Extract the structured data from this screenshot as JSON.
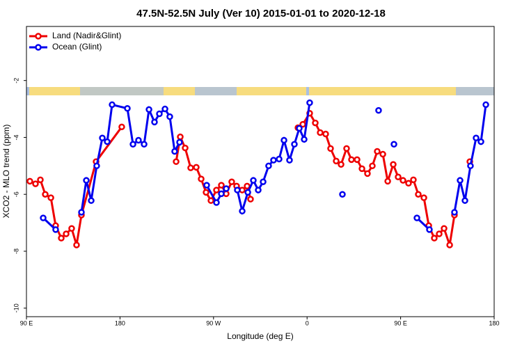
{
  "chart_data": {
    "type": "line",
    "title": "47.5N-52.5N July (Ver 10)   2015-01-01 to 2020-12-18",
    "x_label": "Longitude (deg E)",
    "y_label": "XCO2 - MLO trend (ppm)",
    "xlim": [
      90,
      540
    ],
    "ylim": [
      -10.3,
      -0.1
    ],
    "xticks": [
      {
        "value": 90,
        "label": "90 E"
      },
      180,
      {
        "value": 270,
        "label": "90 W"
      },
      {
        "value": 360,
        "label": "0"
      },
      {
        "value": 450,
        "label": "90 E"
      },
      {
        "value": 540,
        "label": "180"
      }
    ],
    "yticks": [
      -2,
      -4,
      -6,
      -8,
      -10
    ],
    "legend_position": "upper left",
    "series": [
      {
        "name": "Land (Nadir&Glint)",
        "color": "#ee0000",
        "x": [
          93.3,
          98.7,
          103.4,
          108.1,
          113.5,
          118.1,
          123.5,
          128.2,
          133.5,
          138.2,
          142.9,
          157.0,
          181.7,
          null,
          234.0,
          238.0,
          242.7,
          248.0,
          253.4,
          258.1,
          262.8,
          267.5,
          272.8,
          277.5,
          282.2,
          287.5,
          292.2,
          297.6,
          302.3,
          305.6,
          null,
          351.2,
          355.9,
          362.5,
          367.9,
          372.6,
          377.9,
          382.6,
          388.0,
          392.7,
          398.0,
          402.7,
          408.1,
          412.8,
          418.1,
          422.8,
          427.5,
          432.9,
          437.6,
          442.9,
          447.6,
          452.3,
          457.6,
          462.3,
          467.0,
          472.4,
          477.1,
          482.4,
          487.1,
          491.8,
          497.2,
          501.8,
          null,
          516.6
        ],
        "values": [
          -5.54,
          -5.63,
          -5.49,
          -6.0,
          -6.12,
          -7.1,
          -7.54,
          -7.39,
          -7.2,
          -7.78,
          -6.73,
          -4.85,
          -3.63,
          null,
          -4.85,
          -3.98,
          -4.37,
          -5.07,
          -5.05,
          -5.46,
          -5.93,
          -6.22,
          -5.85,
          -5.68,
          -5.98,
          -5.56,
          -5.71,
          -5.85,
          -5.71,
          -6.17,
          null,
          -3.66,
          -3.54,
          -3.15,
          -3.49,
          -3.83,
          -3.88,
          -4.39,
          -4.83,
          -4.95,
          -4.39,
          -4.78,
          -4.78,
          -5.1,
          -5.27,
          -5.0,
          -4.49,
          -4.59,
          -5.54,
          -4.95,
          -5.39,
          -5.51,
          -5.61,
          -5.49,
          -6.0,
          -6.12,
          -7.1,
          -7.54,
          -7.39,
          -7.2,
          -7.78,
          -6.73,
          null,
          -4.85
        ]
      },
      {
        "name": "Ocean (Glint)",
        "color": "#0000ee",
        "x": [
          106.1,
          118.1,
          null,
          142.9,
          147.6,
          152.3,
          157.6,
          163.0,
          167.7,
          172.4,
          187.1,
          192.5,
          197.8,
          203.2,
          207.9,
          213.2,
          217.9,
          223.3,
          227.9,
          232.6,
          237.3,
          null,
          263.4,
          272.8,
          277.5,
          282.2,
          null,
          292.9,
          297.6,
          303.0,
          308.3,
          313.0,
          317.7,
          323.0,
          327.7,
          333.1,
          337.8,
          343.1,
          347.8,
          352.5,
          357.2,
          362.5,
          null,
          394.0,
          null,
          428.8,
          null,
          443.6,
          null,
          465.7,
          477.7,
          null,
          501.8,
          507.2,
          511.9,
          517.2,
          522.6,
          527.3,
          532.0
        ],
        "values": [
          -6.83,
          -7.24,
          null,
          -6.63,
          -5.51,
          -6.22,
          -5.0,
          -4.02,
          -4.15,
          -2.85,
          -2.98,
          -4.24,
          -4.1,
          -4.24,
          -3.02,
          -3.46,
          -3.17,
          -3.0,
          -3.27,
          -4.49,
          -4.17,
          null,
          -5.68,
          -6.29,
          -5.98,
          -5.8,
          null,
          -5.85,
          -6.59,
          -5.93,
          -5.51,
          -5.85,
          -5.56,
          -5.0,
          -4.8,
          -4.76,
          -4.1,
          -4.8,
          -4.24,
          -3.68,
          -4.07,
          -2.78,
          null,
          -6.0,
          null,
          -3.05,
          null,
          -4.24,
          null,
          -6.83,
          -7.24,
          null,
          -6.63,
          -5.51,
          -6.22,
          -5.0,
          -4.02,
          -4.15,
          -2.85
        ]
      }
    ]
  }
}
